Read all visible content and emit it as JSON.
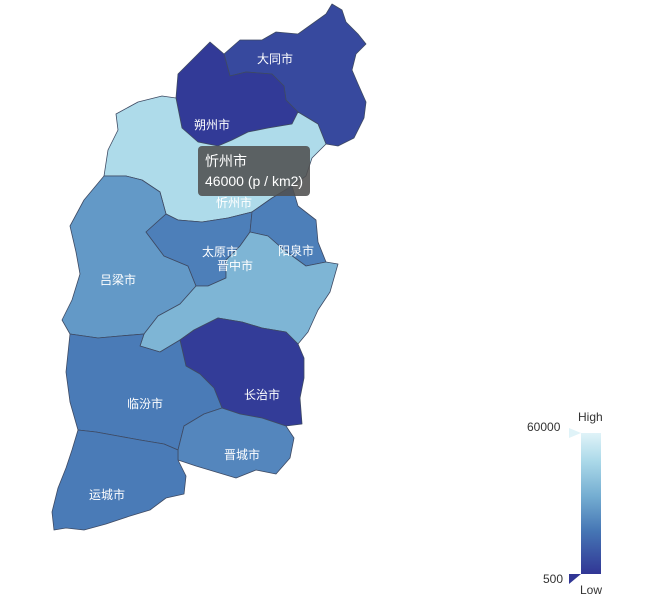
{
  "map": {
    "unit_format": "(p / km2)",
    "regions": [
      {
        "id": "datong",
        "name": "大同市",
        "value": 5000
      },
      {
        "id": "shuozhou",
        "name": "朔州市",
        "value": 1500
      },
      {
        "id": "xinzhou",
        "name": "忻州市",
        "value": 46000
      },
      {
        "id": "lvliang",
        "name": "吕梁市",
        "value": 25000
      },
      {
        "id": "taiyuan",
        "name": "太原市",
        "value": 18000
      },
      {
        "id": "yangquan",
        "name": "阳泉市",
        "value": 18000
      },
      {
        "id": "jinzhong",
        "name": "晋中市",
        "value": 33000
      },
      {
        "id": "changzhi",
        "name": "长治市",
        "value": 2000
      },
      {
        "id": "linfen",
        "name": "临汾市",
        "value": 17000
      },
      {
        "id": "jincheng",
        "name": "晋城市",
        "value": 20000
      },
      {
        "id": "yuncheng",
        "name": "运城市",
        "value": 17000
      }
    ]
  },
  "visual_map": {
    "max": 60000,
    "min": 500,
    "max_label": "60000",
    "min_label": "500",
    "high_text": "High",
    "low_text": "Low",
    "colors": [
      "#313695",
      "#4575b4",
      "#74add1",
      "#abd9e9",
      "#e0f3f8"
    ]
  },
  "tooltip": {
    "title": "忻州市",
    "value_text": "46000 (p / km2)"
  }
}
